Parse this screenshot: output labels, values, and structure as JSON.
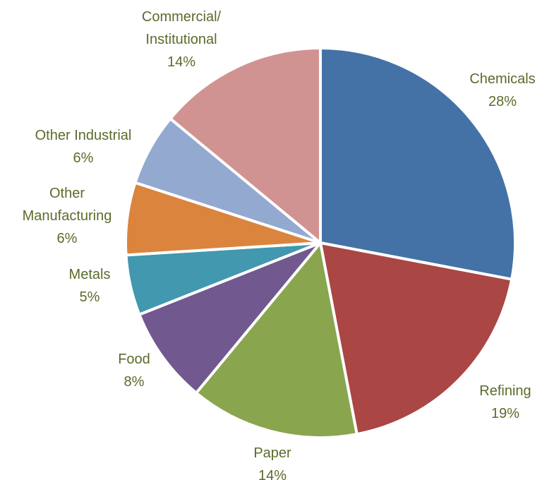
{
  "chart_data": {
    "type": "pie",
    "title": "",
    "legend": "none",
    "slices": [
      {
        "label_lines": [
          "Chemicals"
        ],
        "value": 28,
        "value_label": "28%",
        "color": "#4472a6"
      },
      {
        "label_lines": [
          "Refining"
        ],
        "value": 19,
        "value_label": "19%",
        "color": "#aa4644"
      },
      {
        "label_lines": [
          "Paper"
        ],
        "value": 14,
        "value_label": "14%",
        "color": "#89a54e"
      },
      {
        "label_lines": [
          "Food"
        ],
        "value": 8,
        "value_label": "8%",
        "color": "#71588f"
      },
      {
        "label_lines": [
          "Metals"
        ],
        "value": 5,
        "value_label": "5%",
        "color": "#4298af"
      },
      {
        "label_lines": [
          "Other",
          "Manufacturing"
        ],
        "value": 6,
        "value_label": "6%",
        "color": "#db843d"
      },
      {
        "label_lines": [
          "Other Industrial"
        ],
        "value": 6,
        "value_label": "6%",
        "color": "#93a9cf"
      },
      {
        "label_lines": [
          "Commercial/",
          "Institutional"
        ],
        "value": 14,
        "value_label": "14%",
        "color": "#d19392"
      }
    ]
  }
}
